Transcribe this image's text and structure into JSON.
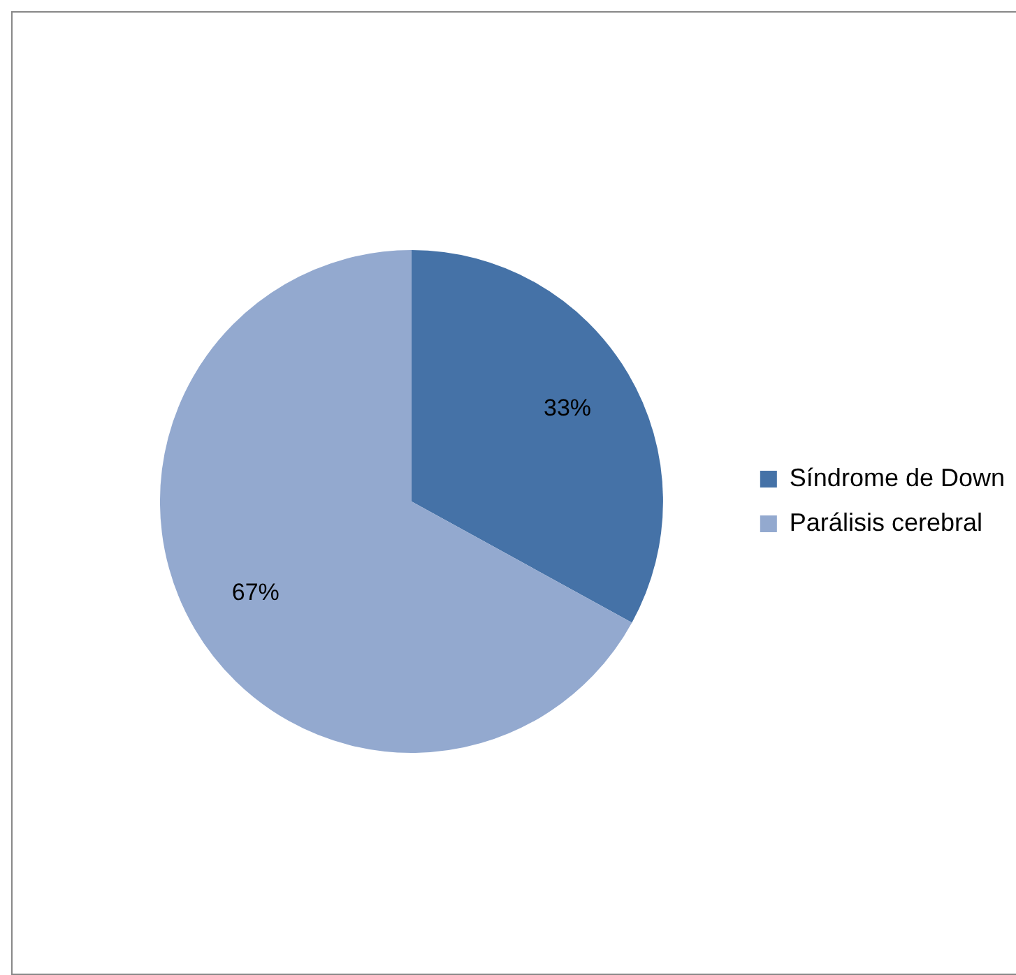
{
  "chart_data": {
    "type": "pie",
    "categories": [
      "Síndrome de Down",
      "Parálisis cerebral"
    ],
    "values": [
      33,
      67
    ],
    "colors": [
      "#4572a7",
      "#93a9cf"
    ],
    "value_labels": [
      "33%",
      "67%"
    ],
    "legend": "right"
  }
}
